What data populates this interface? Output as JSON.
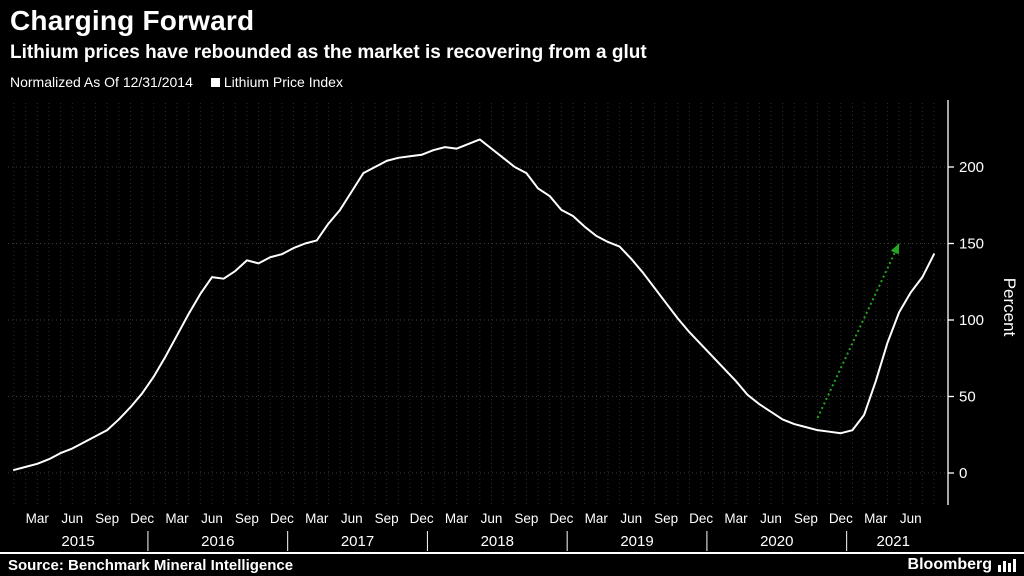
{
  "header": {
    "title": "Charging Forward",
    "subtitle": "Lithium prices have rebounded as the market is recovering from a glut"
  },
  "legend": {
    "note": "Normalized As Of 12/31/2014",
    "series_label": "Lithium Price Index"
  },
  "footer": {
    "source": "Source: Benchmark Mineral Intelligence",
    "brand": "Bloomberg"
  },
  "colors": {
    "background": "#000000",
    "text": "#ffffff",
    "grid_minor": "#2e2e2e",
    "grid_major": "#3a3a3a",
    "axis": "#ffffff",
    "series": "#ffffff",
    "annotation_green": "#24a524"
  },
  "chart_data": {
    "type": "line",
    "title": "Charging Forward",
    "subtitle": "Lithium prices have rebounded as the market is recovering from a glut",
    "note": "Normalized As Of 12/31/2014",
    "xlabel": "",
    "ylabel": "Percent",
    "yticks": [
      0,
      50,
      100,
      150,
      200
    ],
    "ylim": [
      -10,
      235
    ],
    "grid": "dotted",
    "legend_position": "top-left",
    "start_month": "2015-01",
    "end_month": "2021-08",
    "month_tick_pattern": [
      "Mar",
      "Jun",
      "Sep",
      "Dec"
    ],
    "years": [
      "2015",
      "2016",
      "2017",
      "2018",
      "2019",
      "2020",
      "2021"
    ],
    "series": [
      {
        "name": "Lithium Price Index",
        "color": "#ffffff",
        "monthly_values": [
          2,
          4,
          6,
          9,
          13,
          16,
          20,
          24,
          28,
          35,
          43,
          52,
          63,
          76,
          90,
          104,
          117,
          128,
          127,
          132,
          139,
          137,
          141,
          143,
          147,
          150,
          152,
          163,
          172,
          184,
          196,
          200,
          204,
          206,
          207,
          208,
          211,
          213,
          212,
          215,
          218,
          212,
          206,
          200,
          196,
          186,
          181,
          172,
          168,
          161,
          155,
          151,
          148,
          140,
          131,
          121,
          111,
          101,
          92,
          84,
          76,
          68,
          60,
          51,
          45,
          40,
          35,
          32,
          30,
          28,
          27,
          26,
          28,
          38,
          60,
          85,
          105,
          118,
          128,
          143
        ]
      }
    ],
    "annotation": {
      "type": "trend-arrow",
      "style": "dotted",
      "color": "#24a524",
      "from": {
        "month_index": 69,
        "value": 36
      },
      "to": {
        "month_index": 76,
        "value": 150
      }
    }
  }
}
